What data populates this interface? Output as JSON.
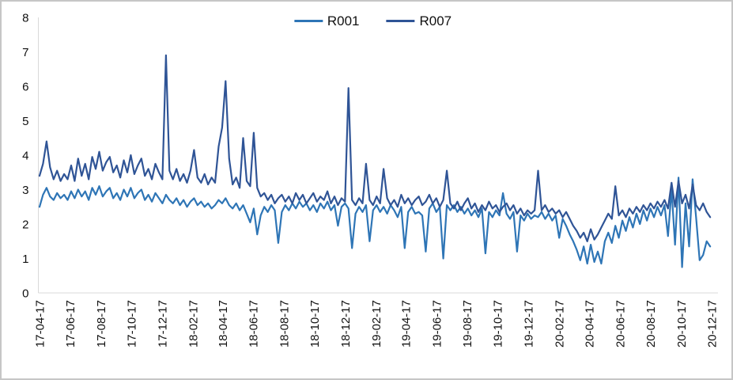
{
  "chart_data": {
    "type": "line",
    "title": "",
    "xlabel": "",
    "ylabel": "",
    "ylim": [
      0,
      8
    ],
    "yticks": [
      0,
      1,
      2,
      3,
      4,
      5,
      6,
      7,
      8
    ],
    "grid": false,
    "legend_position": "top-center",
    "axis_line_color": "#d9d9d9",
    "x": {
      "start_date": "2017-04-17",
      "interval_days": 7,
      "n_points": 192,
      "tick_labels": [
        "17-04-17",
        "17-06-17",
        "17-08-17",
        "17-10-17",
        "17-12-17",
        "18-02-17",
        "18-04-17",
        "18-06-17",
        "18-08-17",
        "18-10-17",
        "18-12-17",
        "19-02-17",
        "19-04-17",
        "19-06-17",
        "19-08-17",
        "19-10-17",
        "19-12-17",
        "20-02-17",
        "20-04-17",
        "20-06-17",
        "20-08-17",
        "20-10-17",
        "20-12-17"
      ]
    },
    "series": [
      {
        "name": "R001",
        "color": "#2e75b6",
        "values": [
          2.5,
          2.85,
          3.05,
          2.8,
          2.7,
          2.9,
          2.75,
          2.85,
          2.7,
          2.95,
          2.75,
          3.0,
          2.8,
          2.95,
          2.7,
          3.05,
          2.85,
          3.1,
          2.8,
          2.95,
          3.05,
          2.75,
          2.9,
          2.7,
          3.0,
          2.8,
          3.05,
          2.75,
          2.9,
          3.0,
          2.7,
          2.85,
          2.65,
          2.9,
          2.75,
          2.6,
          2.85,
          2.7,
          2.6,
          2.75,
          2.55,
          2.7,
          2.5,
          2.65,
          2.75,
          2.55,
          2.65,
          2.5,
          2.6,
          2.45,
          2.55,
          2.7,
          2.6,
          2.75,
          2.55,
          2.45,
          2.6,
          2.4,
          2.55,
          2.3,
          2.05,
          2.45,
          1.7,
          2.25,
          2.5,
          2.35,
          2.55,
          2.4,
          1.45,
          2.35,
          2.55,
          2.4,
          2.6,
          2.45,
          2.65,
          2.5,
          2.6,
          2.4,
          2.55,
          2.35,
          2.6,
          2.45,
          2.65,
          2.4,
          2.55,
          1.95,
          2.5,
          2.6,
          2.45,
          1.3,
          2.3,
          2.5,
          2.35,
          2.55,
          1.5,
          2.4,
          2.55,
          2.35,
          2.5,
          2.3,
          2.55,
          2.4,
          2.2,
          2.5,
          1.3,
          2.35,
          2.5,
          2.3,
          2.35,
          2.25,
          1.2,
          2.45,
          2.6,
          2.35,
          2.5,
          1.0,
          2.55,
          2.4,
          2.55,
          2.35,
          2.5,
          2.3,
          2.45,
          2.25,
          2.4,
          2.2,
          2.45,
          1.15,
          2.35,
          2.2,
          2.4,
          2.25,
          2.9,
          2.3,
          2.15,
          2.35,
          1.2,
          2.25,
          2.1,
          2.3,
          2.15,
          2.25,
          2.2,
          2.35,
          2.15,
          2.3,
          2.1,
          2.25,
          1.6,
          2.15,
          1.95,
          1.7,
          1.5,
          1.25,
          0.95,
          1.35,
          0.85,
          1.4,
          0.9,
          1.2,
          0.85,
          1.5,
          1.75,
          1.45,
          1.95,
          1.6,
          2.1,
          1.8,
          2.2,
          1.9,
          2.3,
          2.0,
          2.4,
          2.1,
          2.45,
          2.2,
          2.5,
          2.25,
          2.55,
          1.65,
          3.0,
          1.4,
          3.35,
          0.75,
          2.6,
          1.35,
          3.3,
          2.2,
          0.95,
          1.1,
          1.5,
          1.35
        ]
      },
      {
        "name": "R007",
        "color": "#2f5496",
        "values": [
          3.4,
          3.75,
          4.4,
          3.65,
          3.3,
          3.55,
          3.25,
          3.45,
          3.3,
          3.7,
          3.25,
          3.9,
          3.4,
          3.75,
          3.3,
          3.95,
          3.6,
          4.1,
          3.55,
          3.8,
          3.95,
          3.5,
          3.7,
          3.35,
          3.85,
          3.5,
          4.0,
          3.45,
          3.7,
          3.9,
          3.4,
          3.6,
          3.3,
          3.75,
          3.5,
          3.3,
          6.9,
          3.55,
          3.3,
          3.6,
          3.25,
          3.45,
          3.2,
          3.55,
          4.15,
          3.35,
          3.2,
          3.45,
          3.15,
          3.35,
          3.2,
          4.25,
          4.8,
          6.15,
          3.9,
          3.15,
          3.35,
          3.05,
          4.5,
          3.25,
          3.1,
          4.65,
          3.05,
          2.8,
          2.9,
          2.7,
          2.85,
          2.6,
          2.75,
          2.85,
          2.65,
          2.8,
          2.6,
          2.9,
          2.7,
          2.85,
          2.6,
          2.75,
          2.9,
          2.65,
          2.8,
          2.7,
          2.95,
          2.6,
          2.8,
          2.55,
          2.75,
          2.65,
          5.95,
          2.7,
          2.55,
          2.75,
          2.6,
          3.75,
          2.7,
          2.55,
          2.8,
          2.6,
          3.6,
          2.75,
          2.55,
          2.7,
          2.5,
          2.85,
          2.6,
          2.75,
          2.55,
          2.7,
          2.8,
          2.55,
          2.65,
          2.85,
          2.6,
          2.75,
          2.5,
          2.7,
          3.55,
          2.6,
          2.45,
          2.65,
          2.4,
          2.6,
          2.75,
          2.45,
          2.6,
          2.35,
          2.55,
          2.4,
          2.65,
          2.45,
          2.55,
          2.35,
          2.5,
          2.6,
          2.4,
          2.55,
          2.3,
          2.45,
          2.25,
          2.4,
          2.3,
          2.4,
          3.55,
          2.4,
          2.55,
          2.35,
          2.45,
          2.3,
          2.4,
          2.2,
          2.35,
          2.15,
          1.95,
          1.8,
          1.6,
          1.75,
          1.5,
          1.85,
          1.55,
          1.7,
          1.9,
          2.1,
          2.3,
          2.15,
          3.1,
          2.25,
          2.4,
          2.2,
          2.45,
          2.3,
          2.5,
          2.35,
          2.55,
          2.4,
          2.6,
          2.45,
          2.65,
          2.5,
          2.7,
          2.45,
          3.2,
          2.5,
          3.25,
          2.6,
          2.85,
          2.45,
          3.15,
          2.55,
          2.4,
          2.6,
          2.35,
          2.2
        ]
      }
    ]
  }
}
